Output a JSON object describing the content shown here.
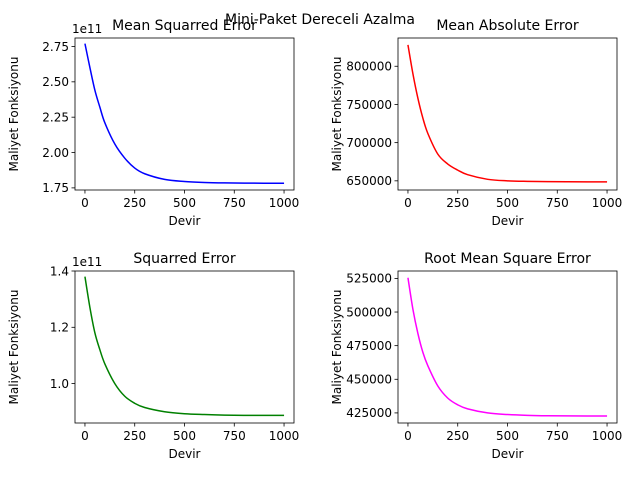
{
  "figure": {
    "suptitle": "Mini-Paket Dereceli Azalma"
  },
  "chart_data": [
    {
      "type": "line",
      "title": "Mean Squarred Error",
      "xlabel": "Devir",
      "ylabel": "Maliyet Fonksiyonu",
      "offset_text": "1e11",
      "color": "#0000ff",
      "xlim": [
        -50,
        1050
      ],
      "ylim": [
        1.735,
        2.81
      ],
      "xticks": [
        0,
        250,
        500,
        750,
        1000
      ],
      "xtick_labels": [
        "0",
        "250",
        "500",
        "750",
        "1000"
      ],
      "yticks": [
        1.75,
        2.0,
        2.25,
        2.5,
        2.75
      ],
      "ytick_labels": [
        "1.75",
        "2.00",
        "2.25",
        "2.50",
        "2.75"
      ],
      "series": [
        {
          "x": [
            0,
            25,
            50,
            75,
            100,
            150,
            200,
            250,
            300,
            400,
            500,
            600,
            700,
            800,
            900,
            1000
          ],
          "y": [
            2.77,
            2.6,
            2.44,
            2.32,
            2.21,
            2.06,
            1.96,
            1.89,
            1.85,
            1.81,
            1.795,
            1.788,
            1.785,
            1.784,
            1.783,
            1.783
          ]
        }
      ]
    },
    {
      "type": "line",
      "title": "Mean Absolute Error",
      "xlabel": "Devir",
      "ylabel": "Maliyet Fonksiyonu",
      "color": "#ff0000",
      "xlim": [
        -50,
        1050
      ],
      "ylim": [
        638000,
        837000
      ],
      "xticks": [
        0,
        250,
        500,
        750,
        1000
      ],
      "xtick_labels": [
        "0",
        "250",
        "500",
        "750",
        "1000"
      ],
      "yticks": [
        650000,
        700000,
        750000,
        800000
      ],
      "ytick_labels": [
        "650000",
        "700000",
        "750000",
        "800000"
      ],
      "series": [
        {
          "x": [
            0,
            25,
            50,
            75,
            100,
            150,
            200,
            250,
            300,
            400,
            500,
            600,
            700,
            800,
            900,
            1000
          ],
          "y": [
            828000,
            790000,
            758000,
            732000,
            712000,
            685000,
            672000,
            664000,
            658000,
            652000,
            650000,
            649300,
            649000,
            648800,
            648700,
            648700
          ]
        }
      ]
    },
    {
      "type": "line",
      "title": "Squarred Error",
      "xlabel": "Devir",
      "ylabel": "Maliyet Fonksiyonu",
      "offset_text": "1e11",
      "color": "#008000",
      "xlim": [
        -50,
        1050
      ],
      "ylim": [
        0.86,
        1.4
      ],
      "xticks": [
        0,
        250,
        500,
        750,
        1000
      ],
      "xtick_labels": [
        "0",
        "250",
        "500",
        "750",
        "1000"
      ],
      "yticks": [
        1.0,
        1.2,
        1.4
      ],
      "ytick_labels": [
        "1.0",
        "1.2",
        "1.4"
      ],
      "series": [
        {
          "x": [
            0,
            25,
            50,
            75,
            100,
            150,
            200,
            250,
            300,
            400,
            500,
            600,
            700,
            800,
            900,
            1000
          ],
          "y": [
            1.38,
            1.27,
            1.18,
            1.12,
            1.07,
            1.0,
            0.955,
            0.93,
            0.915,
            0.9,
            0.893,
            0.89,
            0.888,
            0.887,
            0.887,
            0.887
          ]
        }
      ]
    },
    {
      "type": "line",
      "title": "Root Mean Square Error",
      "xlabel": "Devir",
      "ylabel": "Maliyet Fonksiyonu",
      "color": "#ff00ff",
      "xlim": [
        -50,
        1050
      ],
      "ylim": [
        417500,
        530500
      ],
      "xticks": [
        0,
        250,
        500,
        750,
        1000
      ],
      "xtick_labels": [
        "0",
        "250",
        "500",
        "750",
        "1000"
      ],
      "yticks": [
        425000,
        450000,
        475000,
        500000,
        525000
      ],
      "ytick_labels": [
        "425000",
        "450000",
        "475000",
        "500000",
        "525000"
      ],
      "series": [
        {
          "x": [
            0,
            25,
            50,
            75,
            100,
            150,
            200,
            250,
            300,
            400,
            500,
            600,
            700,
            800,
            900,
            1000
          ],
          "y": [
            525500,
            502000,
            484000,
            470000,
            460000,
            445000,
            436000,
            431000,
            428000,
            425000,
            423800,
            423200,
            422900,
            422800,
            422700,
            422700
          ]
        }
      ]
    }
  ]
}
